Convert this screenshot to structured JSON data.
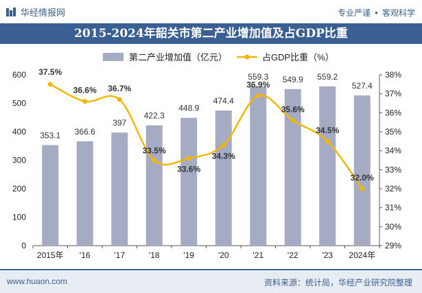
{
  "header": {
    "brand_name": "华经情报网",
    "tagline_left": "专业严谨",
    "tagline_sep": "●",
    "tagline_right": "客观科学"
  },
  "footer": {
    "website": "www.huaon.com",
    "source": "资料来源：统计局，华经产业研究院整理"
  },
  "colors": {
    "bar": "#a5abc2",
    "line": "#f2b705",
    "title_bg": "#3a5f93",
    "accent": "#3b5f8f"
  },
  "chart_data": {
    "type": "bar+line",
    "title": "2015-2024年韶关市第二产业增加值及占GDP比重",
    "categories": [
      "2015年",
      "'16",
      "'17",
      "'18",
      "'19",
      "'20",
      "'21",
      "'22",
      "'23",
      "2024年"
    ],
    "series": [
      {
        "name": "第二产业增加值（亿元）",
        "type": "bar",
        "axis": "left",
        "values": [
          353.1,
          366.6,
          397,
          422.3,
          448.9,
          474.4,
          559.3,
          549.9,
          559.2,
          527.4
        ],
        "labels": [
          "353.1",
          "366.6",
          "397",
          "422.3",
          "448.9",
          "474.4",
          "559.3",
          "549.9",
          "559.2",
          "527.4"
        ]
      },
      {
        "name": "占GDP比重（%）",
        "type": "line",
        "axis": "right",
        "values": [
          37.5,
          36.6,
          36.7,
          33.5,
          33.6,
          34.3,
          36.9,
          35.6,
          34.5,
          32.0
        ],
        "labels": [
          "37.5%",
          "36.6%",
          "36.7%",
          "33.5%",
          "33.6%",
          "34.3%",
          "36.9%",
          "35.6%",
          "34.5%",
          "32.0%"
        ]
      }
    ],
    "y_left": {
      "min": 0,
      "max": 600,
      "ticks": [
        "0",
        "100",
        "200",
        "300",
        "400",
        "500",
        "600"
      ]
    },
    "y_right": {
      "min": 29,
      "max": 38,
      "ticks": [
        "29%",
        "30%",
        "31%",
        "32%",
        "33%",
        "34%",
        "35%",
        "36%",
        "37%",
        "38%"
      ]
    },
    "legend_position": "top",
    "grid": false
  }
}
